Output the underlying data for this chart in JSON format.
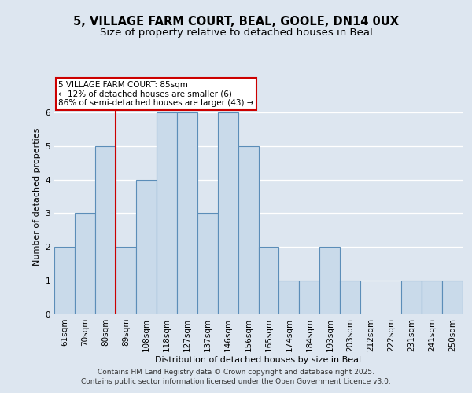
{
  "title1": "5, VILLAGE FARM COURT, BEAL, GOOLE, DN14 0UX",
  "title2": "Size of property relative to detached houses in Beal",
  "xlabel": "Distribution of detached houses by size in Beal",
  "ylabel": "Number of detached properties",
  "bins": [
    "61sqm",
    "70sqm",
    "80sqm",
    "89sqm",
    "108sqm",
    "118sqm",
    "127sqm",
    "137sqm",
    "146sqm",
    "156sqm",
    "165sqm",
    "174sqm",
    "184sqm",
    "193sqm",
    "203sqm",
    "212sqm",
    "222sqm",
    "231sqm",
    "241sqm",
    "250sqm"
  ],
  "values": [
    2,
    3,
    5,
    2,
    4,
    6,
    6,
    3,
    6,
    5,
    2,
    1,
    1,
    2,
    1,
    0,
    0,
    1,
    1,
    1
  ],
  "bar_color": "#c9daea",
  "bar_edgecolor": "#5b8db8",
  "bar_linewidth": 0.8,
  "redline_x": 2.5,
  "redline_color": "#cc0000",
  "annotation_text": "5 VILLAGE FARM COURT: 85sqm\n← 12% of detached houses are smaller (6)\n86% of semi-detached houses are larger (43) →",
  "annotation_box_edgecolor": "#cc0000",
  "annotation_box_facecolor": "#ffffff",
  "ylim": [
    0,
    7
  ],
  "yticks": [
    0,
    1,
    2,
    3,
    4,
    5,
    6
  ],
  "footer1": "Contains HM Land Registry data © Crown copyright and database right 2025.",
  "footer2": "Contains public sector information licensed under the Open Government Licence v3.0.",
  "background_color": "#dde6f0",
  "plot_background": "#dde6f0",
  "grid_color": "#ffffff",
  "title_fontsize": 10.5,
  "subtitle_fontsize": 9.5,
  "axis_label_fontsize": 8,
  "tick_fontsize": 7.5,
  "annotation_fontsize": 7.5,
  "footer_fontsize": 6.5
}
